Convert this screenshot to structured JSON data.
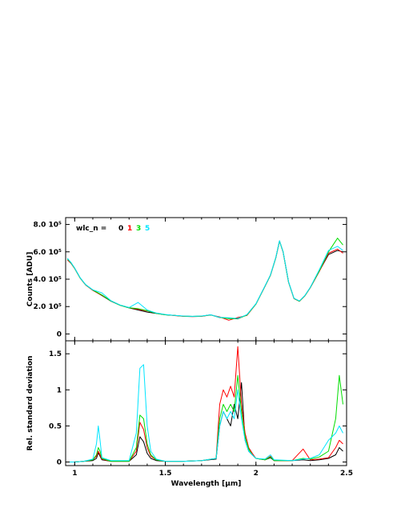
{
  "colors": {
    "wlc0": "#000000",
    "wlc1": "#ff0000",
    "wlc3": "#00dd00",
    "wlc5": "#00e5ff"
  },
  "chart_data": [
    {
      "type": "line",
      "panel": "top",
      "xlabel": "",
      "ylabel": "Counts [ADU]",
      "xlim": [
        0.95,
        2.5
      ],
      "ylim": [
        -50000,
        850000
      ],
      "x_ticks": [
        1,
        1.5,
        2,
        2.5
      ],
      "y_ticks": [
        {
          "value": 0,
          "label": "0"
        },
        {
          "value": 200000,
          "label": "2.0 10⁵"
        },
        {
          "value": 400000,
          "label": "4.0 10⁵"
        },
        {
          "value": 600000,
          "label": "6.0 10⁵"
        },
        {
          "value": 800000,
          "label": "8.0 10⁵"
        }
      ],
      "legend": {
        "prefix": "wlc_n  =",
        "entries": [
          "0",
          "1",
          "3",
          "5"
        ],
        "placement": "top-left"
      },
      "x": [
        0.96,
        0.98,
        1.0,
        1.03,
        1.06,
        1.1,
        1.15,
        1.2,
        1.25,
        1.3,
        1.35,
        1.4,
        1.45,
        1.5,
        1.55,
        1.6,
        1.65,
        1.7,
        1.75,
        1.8,
        1.85,
        1.9,
        1.95,
        2.0,
        2.05,
        2.08,
        2.11,
        2.13,
        2.15,
        2.18,
        2.21,
        2.24,
        2.27,
        2.3,
        2.35,
        2.4,
        2.45,
        2.48
      ],
      "series": [
        {
          "name": "0",
          "values": [
            550000,
            520000,
            480000,
            410000,
            360000,
            320000,
            280000,
            240000,
            210000,
            190000,
            175000,
            160000,
            150000,
            140000,
            135000,
            130000,
            128000,
            130000,
            140000,
            120000,
            115000,
            110000,
            140000,
            220000,
            350000,
            430000,
            560000,
            680000,
            600000,
            380000,
            260000,
            240000,
            280000,
            340000,
            460000,
            580000,
            610000,
            600000
          ]
        },
        {
          "name": "1",
          "values": [
            540000,
            515000,
            478000,
            408000,
            358000,
            318000,
            282000,
            242000,
            211000,
            192000,
            180000,
            168000,
            152000,
            141000,
            134000,
            129000,
            127000,
            129000,
            138000,
            125000,
            100000,
            120000,
            135000,
            218000,
            348000,
            428000,
            558000,
            678000,
            598000,
            378000,
            258000,
            238000,
            278000,
            338000,
            458000,
            590000,
            620000,
            590000
          ]
        },
        {
          "name": "3",
          "values": [
            548000,
            518000,
            479000,
            409000,
            359000,
            321000,
            285000,
            241000,
            210000,
            191000,
            185000,
            170000,
            151000,
            140000,
            135000,
            130000,
            128000,
            130000,
            139000,
            121000,
            112000,
            112000,
            138000,
            219000,
            349000,
            429000,
            559000,
            679000,
            599000,
            379000,
            259000,
            239000,
            279000,
            339000,
            462000,
            600000,
            700000,
            650000
          ]
        },
        {
          "name": "5",
          "values": [
            552000,
            521000,
            481000,
            411000,
            361000,
            322000,
            300000,
            243000,
            212000,
            193000,
            230000,
            175000,
            153000,
            142000,
            136000,
            131000,
            129000,
            131000,
            140000,
            122000,
            118000,
            113000,
            141000,
            221000,
            351000,
            431000,
            561000,
            681000,
            601000,
            381000,
            261000,
            241000,
            281000,
            341000,
            470000,
            610000,
            640000,
            610000
          ]
        }
      ]
    },
    {
      "type": "line",
      "panel": "bottom",
      "xlabel": "Wavelength [μm]",
      "ylabel": "Rel. standard deviation",
      "xlim": [
        0.95,
        2.5
      ],
      "ylim": [
        -0.05,
        1.68
      ],
      "x_ticks": [
        {
          "value": 1,
          "label": "1"
        },
        {
          "value": 1.5,
          "label": "1.5"
        },
        {
          "value": 2,
          "label": "2"
        },
        {
          "value": 2.5,
          "label": "2.5"
        }
      ],
      "y_ticks": [
        {
          "value": 0,
          "label": "0"
        },
        {
          "value": 0.5,
          "label": "0.5"
        },
        {
          "value": 1,
          "label": "1"
        },
        {
          "value": 1.5,
          "label": "1.5"
        }
      ],
      "x": [
        0.96,
        1.0,
        1.05,
        1.1,
        1.12,
        1.13,
        1.14,
        1.15,
        1.2,
        1.3,
        1.34,
        1.36,
        1.38,
        1.4,
        1.42,
        1.45,
        1.5,
        1.6,
        1.7,
        1.78,
        1.8,
        1.82,
        1.84,
        1.86,
        1.88,
        1.9,
        1.92,
        1.94,
        1.96,
        1.98,
        2.0,
        2.05,
        2.08,
        2.1,
        2.2,
        2.26,
        2.3,
        2.35,
        2.4,
        2.44,
        2.46,
        2.48
      ],
      "series": [
        {
          "name": "0",
          "values": [
            0.0,
            0.0,
            0.01,
            0.02,
            0.05,
            0.13,
            0.08,
            0.03,
            0.01,
            0.01,
            0.1,
            0.35,
            0.28,
            0.12,
            0.05,
            0.02,
            0.01,
            0.01,
            0.02,
            0.04,
            0.5,
            0.7,
            0.6,
            0.5,
            0.8,
            0.6,
            1.1,
            0.3,
            0.15,
            0.1,
            0.05,
            0.03,
            0.06,
            0.02,
            0.02,
            0.03,
            0.02,
            0.03,
            0.05,
            0.1,
            0.2,
            0.15
          ]
        },
        {
          "name": "1",
          "values": [
            0.0,
            0.0,
            0.01,
            0.03,
            0.08,
            0.15,
            0.1,
            0.04,
            0.01,
            0.01,
            0.15,
            0.55,
            0.45,
            0.2,
            0.08,
            0.03,
            0.01,
            0.01,
            0.02,
            0.05,
            0.8,
            1.0,
            0.9,
            1.05,
            0.9,
            1.6,
            0.8,
            0.4,
            0.2,
            0.12,
            0.05,
            0.03,
            0.08,
            0.02,
            0.02,
            0.18,
            0.03,
            0.04,
            0.06,
            0.2,
            0.3,
            0.25
          ]
        },
        {
          "name": "3",
          "values": [
            0.0,
            0.0,
            0.01,
            0.03,
            0.1,
            0.2,
            0.15,
            0.05,
            0.01,
            0.01,
            0.2,
            0.65,
            0.6,
            0.25,
            0.1,
            0.03,
            0.01,
            0.01,
            0.02,
            0.05,
            0.6,
            0.8,
            0.7,
            0.8,
            0.7,
            1.2,
            0.7,
            0.35,
            0.18,
            0.1,
            0.05,
            0.03,
            0.07,
            0.02,
            0.02,
            0.05,
            0.04,
            0.07,
            0.15,
            0.6,
            1.2,
            0.8
          ]
        },
        {
          "name": "5",
          "values": [
            0.0,
            0.0,
            0.01,
            0.04,
            0.25,
            0.5,
            0.3,
            0.06,
            0.02,
            0.02,
            0.4,
            1.3,
            1.35,
            0.5,
            0.15,
            0.04,
            0.01,
            0.01,
            0.02,
            0.05,
            0.5,
            0.7,
            0.6,
            0.7,
            0.6,
            1.0,
            0.6,
            0.3,
            0.15,
            0.1,
            0.05,
            0.04,
            0.1,
            0.03,
            0.02,
            0.04,
            0.05,
            0.1,
            0.3,
            0.4,
            0.5,
            0.4
          ]
        }
      ]
    }
  ]
}
